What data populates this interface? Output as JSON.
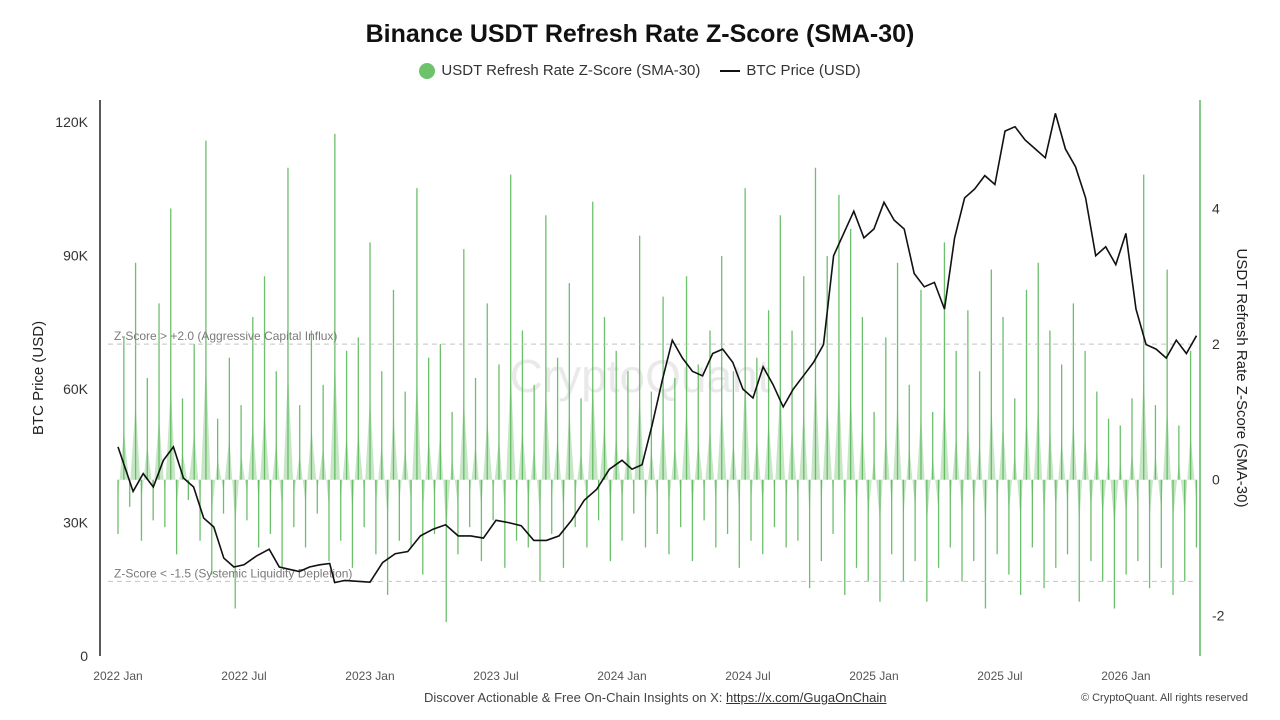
{
  "title": "Binance USDT Refresh Rate Z-Score (SMA-30)",
  "colors": {
    "zscore": "#5cb85c",
    "btc": "#111111",
    "grid": "#bbbbbb"
  },
  "watermark": "CryptoQuant",
  "footer": {
    "text": "Discover Actionable & Free On-Chain Insights on X: ",
    "link": "https://x.com/GugaOnChain",
    "copyright": "© CryptoQuant. All rights reserved"
  },
  "chart_data": {
    "type": "line",
    "title": "Binance USDT Refresh Rate Z-Score (SMA-30)",
    "legend": [
      {
        "name": "USDT Refresh Rate Z-Score (SMA-30)",
        "marker": "circle"
      },
      {
        "name": "BTC Price (USD)",
        "marker": "line"
      }
    ],
    "legend_position": "top-center",
    "ylabel_left": "BTC Price (USD)",
    "ylabel_right": "USDT Refresh Rate Z-Score (SMA-30)",
    "y_left_ticks": [
      "0",
      "30K",
      "60K",
      "90K",
      "120K"
    ],
    "y_left_range": [
      0,
      125000
    ],
    "y_right_ticks": [
      "-2",
      "0",
      "2",
      "4"
    ],
    "y_right_range": [
      -2.6,
      5.6
    ],
    "x_ticks": [
      "2022 Jan",
      "2022 Jul",
      "2023 Jan",
      "2023 Jul",
      "2024 Jan",
      "2024 Jul",
      "2025 Jan",
      "2025 Jul",
      "2026 Jan"
    ],
    "x_range": [
      2022.0,
      2026.3
    ],
    "reference_lines": [
      {
        "axis": "right",
        "value": 2.0,
        "label": "Z-Score > +2.0 (Aggressive Capital Influx)"
      },
      {
        "axis": "right",
        "value": -1.5,
        "label": "Z-Score < -1.5 (Systemic Liquidity Depletion)"
      }
    ],
    "series": [
      {
        "name": "BTC Price (USD)",
        "axis": "left",
        "points": [
          [
            2022.0,
            47000
          ],
          [
            2022.03,
            42000
          ],
          [
            2022.06,
            37000
          ],
          [
            2022.1,
            41000
          ],
          [
            2022.14,
            38000
          ],
          [
            2022.18,
            44000
          ],
          [
            2022.22,
            47000
          ],
          [
            2022.26,
            40000
          ],
          [
            2022.3,
            38000
          ],
          [
            2022.34,
            31000
          ],
          [
            2022.38,
            29000
          ],
          [
            2022.42,
            22000
          ],
          [
            2022.46,
            20000
          ],
          [
            2022.5,
            20500
          ],
          [
            2022.55,
            22500
          ],
          [
            2022.6,
            24000
          ],
          [
            2022.64,
            20000
          ],
          [
            2022.68,
            19500
          ],
          [
            2022.72,
            19000
          ],
          [
            2022.76,
            20000
          ],
          [
            2022.8,
            20500
          ],
          [
            2022.84,
            20800
          ],
          [
            2022.86,
            16500
          ],
          [
            2022.9,
            17000
          ],
          [
            2022.95,
            16800
          ],
          [
            2023.0,
            16600
          ],
          [
            2023.05,
            21000
          ],
          [
            2023.1,
            23000
          ],
          [
            2023.15,
            23500
          ],
          [
            2023.2,
            27000
          ],
          [
            2023.25,
            28500
          ],
          [
            2023.3,
            29500
          ],
          [
            2023.35,
            27000
          ],
          [
            2023.4,
            27000
          ],
          [
            2023.45,
            26500
          ],
          [
            2023.5,
            30500
          ],
          [
            2023.55,
            30000
          ],
          [
            2023.6,
            29300
          ],
          [
            2023.65,
            26000
          ],
          [
            2023.7,
            26000
          ],
          [
            2023.75,
            27000
          ],
          [
            2023.8,
            30500
          ],
          [
            2023.85,
            35000
          ],
          [
            2023.9,
            37500
          ],
          [
            2023.95,
            42000
          ],
          [
            2024.0,
            44000
          ],
          [
            2024.04,
            42000
          ],
          [
            2024.08,
            43000
          ],
          [
            2024.12,
            52000
          ],
          [
            2024.16,
            62000
          ],
          [
            2024.2,
            71000
          ],
          [
            2024.24,
            67000
          ],
          [
            2024.28,
            64000
          ],
          [
            2024.32,
            63000
          ],
          [
            2024.36,
            68000
          ],
          [
            2024.4,
            69000
          ],
          [
            2024.44,
            66000
          ],
          [
            2024.48,
            60000
          ],
          [
            2024.52,
            58000
          ],
          [
            2024.56,
            65000
          ],
          [
            2024.6,
            61000
          ],
          [
            2024.64,
            56000
          ],
          [
            2024.68,
            60000
          ],
          [
            2024.72,
            63000
          ],
          [
            2024.76,
            66000
          ],
          [
            2024.8,
            70000
          ],
          [
            2024.84,
            90000
          ],
          [
            2024.88,
            95000
          ],
          [
            2024.92,
            100000
          ],
          [
            2024.96,
            94000
          ],
          [
            2025.0,
            96000
          ],
          [
            2025.04,
            102000
          ],
          [
            2025.08,
            98000
          ],
          [
            2025.12,
            96000
          ],
          [
            2025.16,
            86000
          ],
          [
            2025.2,
            83000
          ],
          [
            2025.24,
            84000
          ],
          [
            2025.28,
            78000
          ],
          [
            2025.32,
            94000
          ],
          [
            2025.36,
            103000
          ],
          [
            2025.4,
            105000
          ],
          [
            2025.44,
            108000
          ],
          [
            2025.48,
            106000
          ],
          [
            2025.52,
            118000
          ],
          [
            2025.56,
            119000
          ],
          [
            2025.6,
            116000
          ],
          [
            2025.64,
            114000
          ],
          [
            2025.68,
            112000
          ],
          [
            2025.72,
            122000
          ],
          [
            2025.76,
            114000
          ],
          [
            2025.8,
            110000
          ],
          [
            2025.84,
            103000
          ],
          [
            2025.88,
            90000
          ],
          [
            2025.92,
            92000
          ],
          [
            2025.96,
            88000
          ],
          [
            2026.0,
            95000
          ],
          [
            2026.04,
            78000
          ],
          [
            2026.08,
            70000
          ],
          [
            2026.12,
            69000
          ],
          [
            2026.16,
            67000
          ],
          [
            2026.2,
            71000
          ],
          [
            2026.24,
            68000
          ],
          [
            2026.28,
            72000
          ]
        ]
      },
      {
        "name": "USDT Refresh Rate Z-Score (SMA-30)",
        "axis": "right",
        "sampling": "weekly from 2022 Jan to 2026 Mar",
        "values": [
          -0.8,
          2.1,
          -0.4,
          3.2,
          -0.9,
          1.5,
          -0.6,
          2.6,
          -0.7,
          4.0,
          -1.1,
          1.2,
          -0.3,
          2.0,
          -0.9,
          5.0,
          -1.4,
          0.9,
          -0.5,
          1.8,
          -1.9,
          1.1,
          -0.6,
          2.4,
          -1.0,
          3.0,
          -0.8,
          1.6,
          -1.3,
          4.6,
          -0.7,
          1.1,
          -1.0,
          2.2,
          -0.5,
          1.4,
          -1.2,
          5.1,
          -0.9,
          1.9,
          -1.3,
          2.1,
          -0.7,
          3.5,
          -1.1,
          1.6,
          -1.7,
          2.8,
          -0.9,
          1.3,
          -1.0,
          4.3,
          -1.4,
          1.8,
          -0.8,
          2.0,
          -2.1,
          1.0,
          -1.1,
          3.4,
          -0.7,
          1.5,
          -1.2,
          2.6,
          -0.6,
          1.7,
          -1.3,
          4.5,
          -0.9,
          2.2,
          -1.0,
          1.4,
          -1.5,
          3.9,
          -0.8,
          1.8,
          -1.3,
          2.9,
          -0.7,
          1.2,
          -1.0,
          4.1,
          -0.6,
          2.4,
          -1.2,
          1.9,
          -0.9,
          1.6,
          -0.5,
          3.6,
          -1.0,
          1.3,
          -0.8,
          2.7,
          -1.1,
          1.5,
          -0.7,
          3.0,
          -1.2,
          1.7,
          -0.6,
          2.2,
          -1.0,
          3.3,
          -0.8,
          1.6,
          -1.3,
          4.3,
          -0.9,
          1.8,
          -1.1,
          2.5,
          -0.7,
          3.9,
          -1.0,
          2.2,
          -0.9,
          3.0,
          -1.6,
          4.6,
          -1.2,
          3.3,
          -0.8,
          4.2,
          -1.7,
          3.7,
          -1.3,
          2.4,
          -1.5,
          1.0,
          -1.8,
          2.1,
          -1.1,
          3.2,
          -1.5,
          1.4,
          -1.2,
          2.8,
          -1.8,
          1.0,
          -1.3,
          3.5,
          -1.0,
          1.9,
          -1.5,
          2.5,
          -1.2,
          1.6,
          -1.9,
          3.1,
          -1.1,
          2.4,
          -1.4,
          1.2,
          -1.7,
          2.8,
          -1.0,
          3.2,
          -1.6,
          2.2,
          -1.3,
          1.7,
          -1.1,
          2.6,
          -1.8,
          1.9,
          -1.2,
          1.3,
          -1.5,
          0.9,
          -1.9,
          0.8,
          -1.4,
          1.2,
          -1.2,
          4.5,
          -1.6,
          1.1,
          -1.3,
          3.1,
          -1.7,
          0.8,
          -1.5,
          1.9,
          -1.0
        ]
      }
    ]
  }
}
